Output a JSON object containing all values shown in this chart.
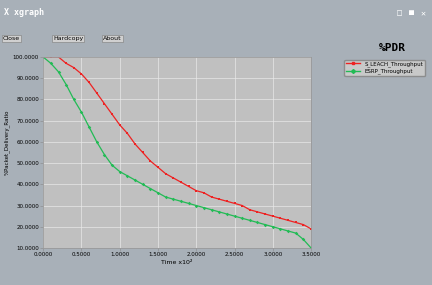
{
  "title": "%PDR",
  "ylabel": "%Packet_Delivery_Ratio",
  "xlabel": "Time x10²",
  "xlim": [
    0.0,
    3.5
  ],
  "ylim": [
    10,
    100
  ],
  "xticks": [
    0.0,
    0.5,
    1.0,
    1.5,
    2.0,
    2.5,
    3.0,
    3.5
  ],
  "xtick_labels": [
    "0.0000",
    "0.5000",
    "1.0000",
    "1.5000",
    "2.0000",
    "2.5000",
    "3.0000",
    "3.5000"
  ],
  "yticks": [
    10,
    20,
    30,
    40,
    50,
    60,
    70,
    80,
    90,
    100
  ],
  "ytick_labels": [
    "10.0000",
    "20.0000",
    "30.0000",
    "40.0000",
    "50.0000",
    "60.0000",
    "70.0000",
    "80.0000",
    "90.0000",
    "100.0000"
  ],
  "legend_labels": [
    "S_LEACH_Throughput",
    "ESRP_Throughput"
  ],
  "line_colors": [
    "#ee2222",
    "#22bb55"
  ],
  "bg_color": "#c0c0c0",
  "window_bg": "#a8b0b8",
  "title_bar_color": "#6080a0",
  "grid_color": "#e8e8e8",
  "red_x": [
    0.0,
    0.1,
    0.2,
    0.3,
    0.4,
    0.5,
    0.6,
    0.7,
    0.8,
    0.9,
    1.0,
    1.1,
    1.2,
    1.3,
    1.4,
    1.5,
    1.6,
    1.7,
    1.8,
    1.9,
    2.0,
    2.1,
    2.2,
    2.3,
    2.4,
    2.5,
    2.6,
    2.7,
    2.8,
    2.9,
    3.0,
    3.1,
    3.2,
    3.3,
    3.4,
    3.5
  ],
  "red_y": [
    100,
    100,
    100,
    97,
    95,
    92,
    88,
    83,
    78,
    73,
    68,
    64,
    59,
    55,
    51,
    48,
    45,
    43,
    41,
    39,
    37,
    36,
    34,
    33,
    32,
    31,
    30,
    28,
    27,
    26,
    25,
    24,
    23,
    22,
    21,
    19
  ],
  "green_x": [
    0.0,
    0.1,
    0.2,
    0.3,
    0.4,
    0.5,
    0.6,
    0.7,
    0.8,
    0.9,
    1.0,
    1.1,
    1.2,
    1.3,
    1.4,
    1.5,
    1.6,
    1.7,
    1.8,
    1.9,
    2.0,
    2.1,
    2.2,
    2.3,
    2.4,
    2.5,
    2.6,
    2.7,
    2.8,
    2.9,
    3.0,
    3.1,
    3.2,
    3.3,
    3.4,
    3.5
  ],
  "green_y": [
    100,
    97,
    93,
    87,
    80,
    74,
    67,
    60,
    54,
    49,
    46,
    44,
    42,
    40,
    38,
    36,
    34,
    33,
    32,
    31,
    30,
    29,
    28,
    27,
    26,
    25,
    24,
    23,
    22,
    21,
    20,
    19,
    18,
    17,
    14,
    10
  ]
}
